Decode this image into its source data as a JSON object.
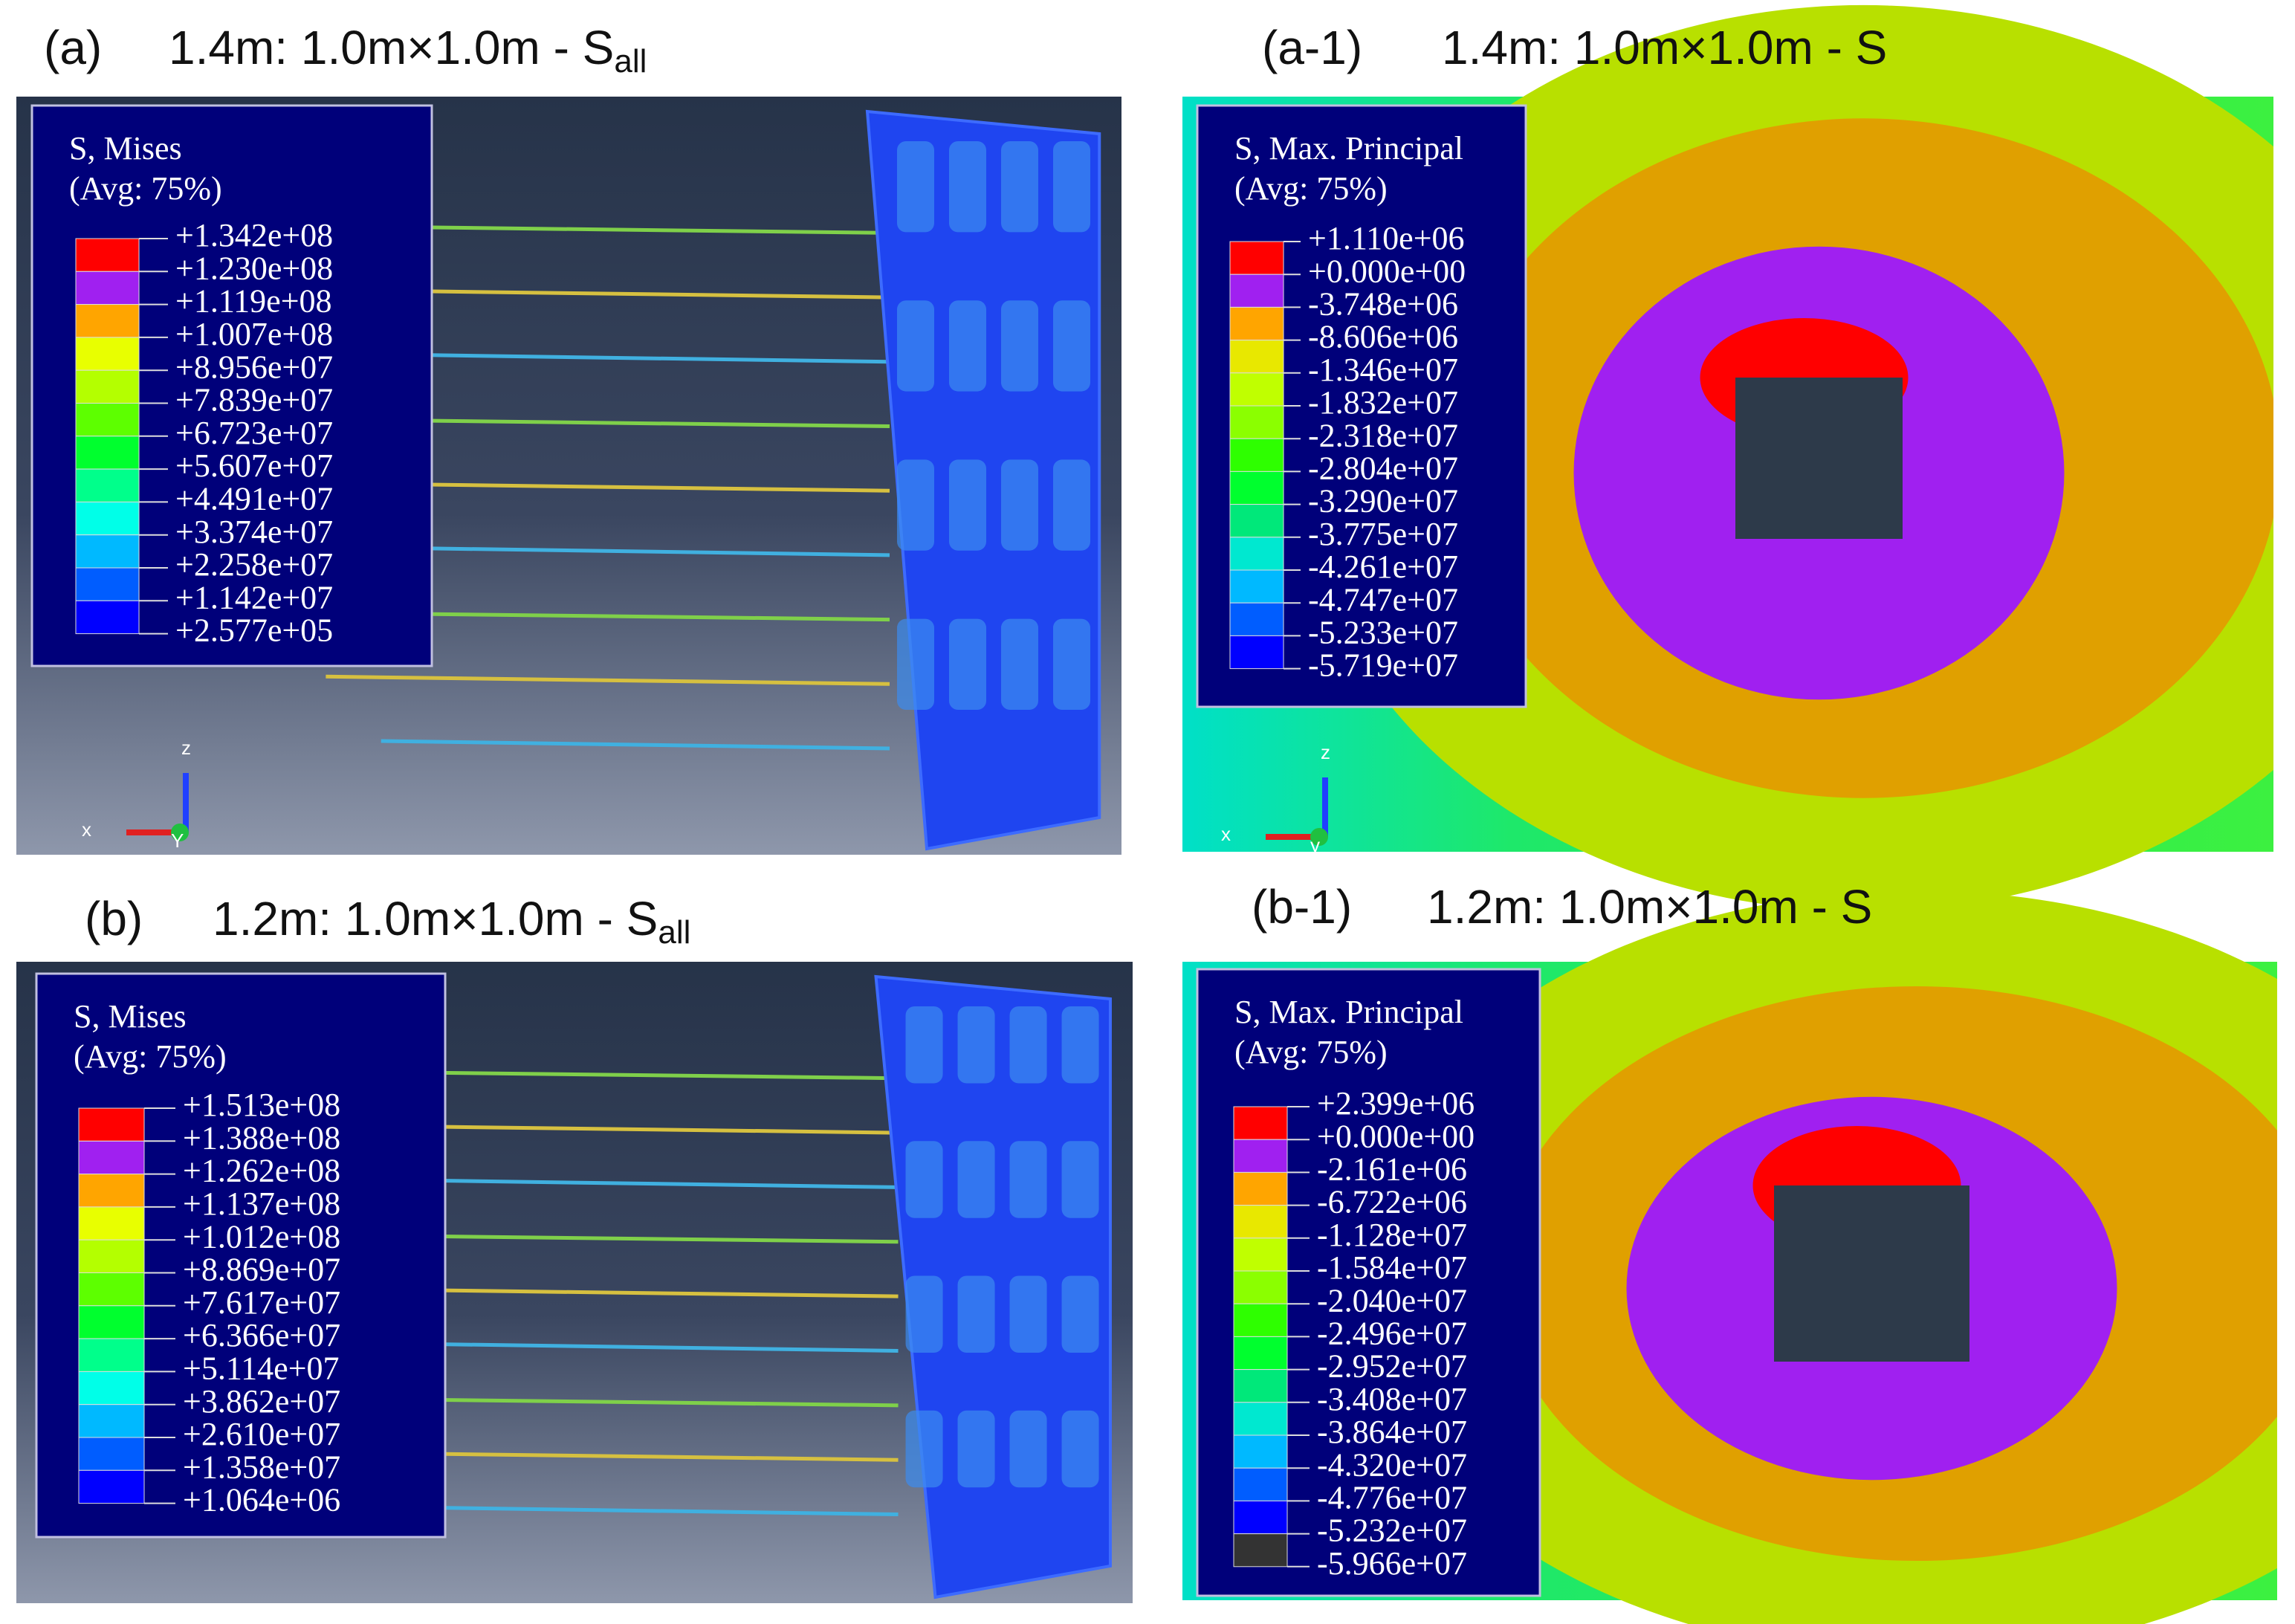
{
  "panels": [
    {
      "label": "(a)",
      "title": "1.4m: 1.0m×1.0m - S",
      "subscript": "all",
      "legend": {
        "title": "S, Mises",
        "subtitle": "(Avg: 75%)",
        "values": [
          "+1.342e+08",
          "+1.230e+08",
          "+1.119e+08",
          "+1.007e+08",
          "+8.956e+07",
          "+7.839e+07",
          "+6.723e+07",
          "+5.607e+07",
          "+4.491e+07",
          "+3.374e+07",
          "+2.258e+07",
          "+1.142e+07",
          "+2.577e+05"
        ],
        "colors": [
          "#ff0000",
          "#a020f0",
          "#ffa500",
          "#e8ff00",
          "#b4ff00",
          "#5dff00",
          "#00ff2e",
          "#00ff8b",
          "#00ffe8",
          "#00b9ff",
          "#005dff",
          "#0000ff"
        ]
      },
      "triad": [
        "z",
        "x",
        "Y"
      ]
    },
    {
      "label": "(a-1)",
      "title": "1.4m: 1.0m×1.0m -  S",
      "legend": {
        "title": "S, Max. Principal",
        "subtitle": "(Avg: 75%)",
        "values": [
          "+1.110e+06",
          "+0.000e+00",
          "-3.748e+06",
          "-8.606e+06",
          "-1.346e+07",
          "-1.832e+07",
          "-2.318e+07",
          "-2.804e+07",
          "-3.290e+07",
          "-3.775e+07",
          "-4.261e+07",
          "-4.747e+07",
          "-5.233e+07",
          "-5.719e+07"
        ],
        "colors": [
          "#ff0000",
          "#a020f0",
          "#ffa500",
          "#e8e800",
          "#c0ff00",
          "#8bff00",
          "#2eff00",
          "#00ff2e",
          "#00e87a",
          "#00e8d0",
          "#00b9ff",
          "#005dff",
          "#0000ff"
        ]
      },
      "triad": [
        "z",
        "x",
        "y"
      ]
    },
    {
      "label": "(b)",
      "title": "1.2m: 1.0m×1.0m - S",
      "subscript": "all",
      "legend": {
        "title": "S, Mises",
        "subtitle": "(Avg: 75%)",
        "values": [
          "+1.513e+08",
          "+1.388e+08",
          "+1.262e+08",
          "+1.137e+08",
          "+1.012e+08",
          "+8.869e+07",
          "+7.617e+07",
          "+6.366e+07",
          "+5.114e+07",
          "+3.862e+07",
          "+2.610e+07",
          "+1.358e+07",
          "+1.064e+06"
        ],
        "colors": [
          "#ff0000",
          "#a020f0",
          "#ffa500",
          "#e8ff00",
          "#b4ff00",
          "#5dff00",
          "#00ff2e",
          "#00ff8b",
          "#00ffe8",
          "#00b9ff",
          "#005dff",
          "#0000ff"
        ]
      }
    },
    {
      "label": "(b-1)",
      "title": "1.2m: 1.0m×1.0m -  S",
      "legend": {
        "title": "S, Max. Principal",
        "subtitle": "(Avg: 75%)",
        "values": [
          "+2.399e+06",
          "+0.000e+00",
          "-2.161e+06",
          "-6.722e+06",
          "-1.128e+07",
          "-1.584e+07",
          "-2.040e+07",
          "-2.496e+07",
          "-2.952e+07",
          "-3.408e+07",
          "-3.864e+07",
          "-4.320e+07",
          "-4.776e+07",
          "-5.232e+07",
          "-5.966e+07"
        ],
        "colors": [
          "#ff0000",
          "#a020f0",
          "#ffa500",
          "#e8e800",
          "#c0ff00",
          "#8bff00",
          "#2eff00",
          "#00ff2e",
          "#00e87a",
          "#00e8d0",
          "#00b9ff",
          "#005dff",
          "#0000ff",
          "#333333"
        ]
      }
    }
  ]
}
